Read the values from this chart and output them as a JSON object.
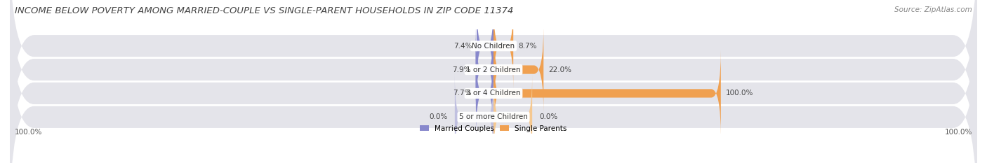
{
  "title": "INCOME BELOW POVERTY AMONG MARRIED-COUPLE VS SINGLE-PARENT HOUSEHOLDS IN ZIP CODE 11374",
  "source": "Source: ZipAtlas.com",
  "categories": [
    "No Children",
    "1 or 2 Children",
    "3 or 4 Children",
    "5 or more Children"
  ],
  "married_values": [
    7.4,
    7.9,
    7.7,
    0.0
  ],
  "single_values": [
    8.7,
    22.0,
    100.0,
    0.0
  ],
  "married_color": "#8888cc",
  "single_color": "#f0a050",
  "single_light": "#f5c890",
  "married_light": "#c0c0e0",
  "bar_bg_color": "#e4e4ea",
  "married_label": "Married Couples",
  "single_label": "Single Parents",
  "max_val": 100.0,
  "title_fontsize": 9.5,
  "source_fontsize": 7.5,
  "label_fontsize": 7.5,
  "category_fontsize": 7.5,
  "legend_fontsize": 7.5,
  "background_color": "#ffffff"
}
